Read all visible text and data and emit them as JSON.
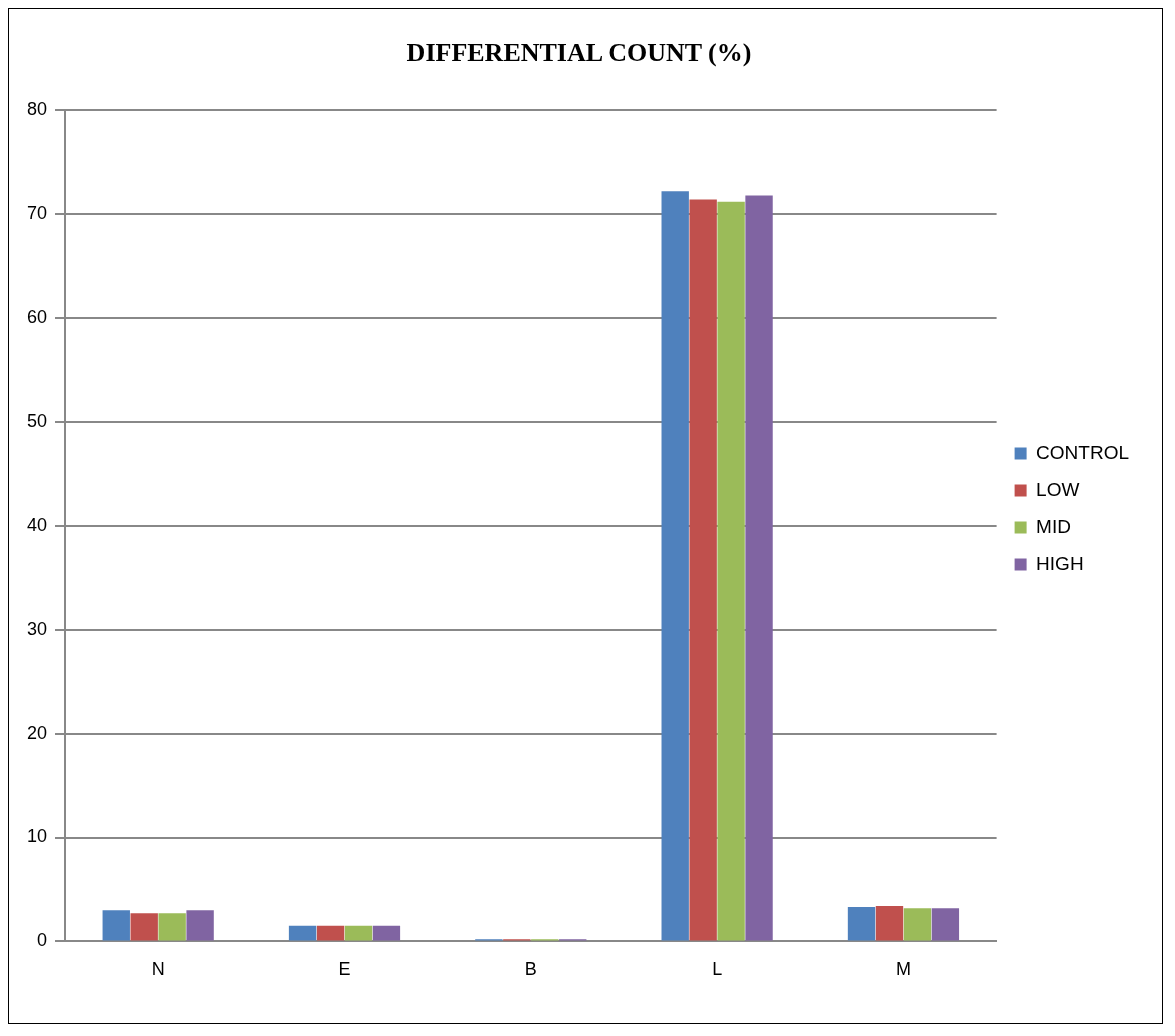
{
  "chart_data": {
    "type": "bar",
    "title": "DIFFERENTIAL COUNT (%)",
    "categories": [
      "N",
      "E",
      "B",
      "L",
      "M"
    ],
    "series": [
      {
        "name": "CONTROL",
        "color": "#4f81bd",
        "values": [
          3.0,
          1.5,
          0.2,
          72.2,
          3.3
        ]
      },
      {
        "name": "LOW",
        "color": "#c0504d",
        "values": [
          2.7,
          1.5,
          0.2,
          71.4,
          3.4
        ]
      },
      {
        "name": "MID",
        "color": "#9bbb59",
        "values": [
          2.7,
          1.5,
          0.2,
          71.2,
          3.2
        ]
      },
      {
        "name": "HIGH",
        "color": "#8064a2",
        "values": [
          3.0,
          1.5,
          0.2,
          71.8,
          3.2
        ]
      }
    ],
    "ylim": [
      0,
      80
    ],
    "yticks": [
      0,
      10,
      20,
      30,
      40,
      50,
      60,
      70,
      80
    ],
    "grid": "y",
    "legend": "right"
  }
}
